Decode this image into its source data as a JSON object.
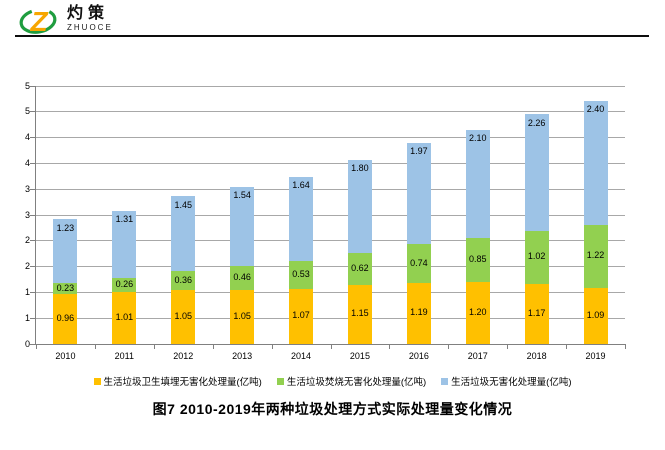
{
  "logo": {
    "brand_cn": "灼策",
    "brand_en": "ZHUOCE"
  },
  "title": "图7  2010-2019年两种垃圾处理方式实际处理量变化情况",
  "colors": {
    "landfill": "#FFC000",
    "incineration": "#92D050",
    "total": "#9DC3E6",
    "gridline": "#A8A8A8",
    "axis": "#808080",
    "logo_green": "#1F9D3F",
    "logo_orange": "#F7A600"
  },
  "chart_data": {
    "type": "bar",
    "stacked": true,
    "categories": [
      "2010",
      "2011",
      "2012",
      "2013",
      "2014",
      "2015",
      "2016",
      "2017",
      "2018",
      "2019"
    ],
    "series": [
      {
        "key": "landfill",
        "name": "生活垃圾卫生填埋无害化处理量(亿吨)",
        "color": "#FFC000",
        "label_position": "center",
        "values": [
          0.96,
          1.01,
          1.05,
          1.05,
          1.07,
          1.15,
          1.19,
          1.2,
          1.17,
          1.09
        ]
      },
      {
        "key": "incineration",
        "name": "生活垃圾焚烧无害化处理量(亿吨)",
        "color": "#92D050",
        "label_position": "center",
        "values": [
          0.23,
          0.26,
          0.36,
          0.46,
          0.53,
          0.62,
          0.74,
          0.85,
          1.02,
          1.22
        ]
      },
      {
        "key": "total",
        "name": "生活垃圾无害化处理量(亿吨)",
        "color": "#9DC3E6",
        "label_position": "inside-end",
        "values": [
          1.23,
          1.31,
          1.45,
          1.54,
          1.64,
          1.8,
          1.97,
          2.1,
          2.26,
          2.4
        ]
      }
    ],
    "ylim": [
      0,
      5
    ],
    "ytick_step": 0.5,
    "ytick_labels": [
      "0",
      "1",
      "1",
      "2",
      "2",
      "3",
      "3",
      "4",
      "4",
      "5",
      "5"
    ],
    "grid": true,
    "legend_position": "bottom"
  }
}
